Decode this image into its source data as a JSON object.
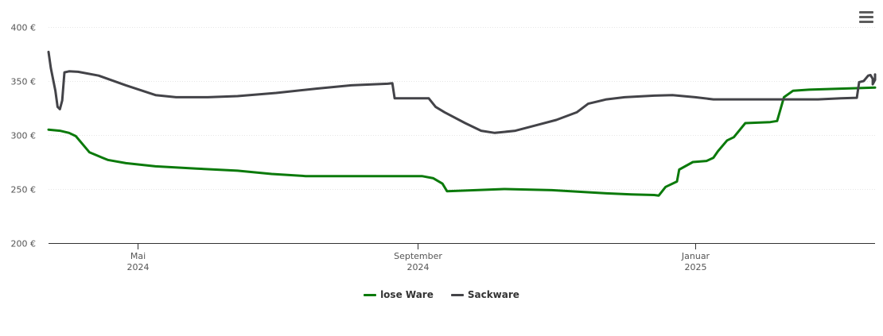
{
  "chart_data": {
    "type": "line",
    "ylim": [
      200,
      400
    ],
    "yticks": [
      "200 €",
      "250 €",
      "300 €",
      "350 €",
      "400 €"
    ],
    "ytick_values": [
      200,
      250,
      300,
      350,
      400
    ],
    "xrange": [
      "2024-03-23",
      "2025-03-21"
    ],
    "xticks": [
      {
        "date": "2024-05-01",
        "line1": "Mai",
        "line2": "2024"
      },
      {
        "date": "2024-09-01",
        "line1": "September",
        "line2": "2024"
      },
      {
        "date": "2025-01-01",
        "line1": "Januar",
        "line2": "2025"
      }
    ],
    "grid": true,
    "legend_position": "bottom-center",
    "series": [
      {
        "name": "lose Ware",
        "color": "#0b7a0b",
        "points": [
          [
            "2024-03-23",
            305
          ],
          [
            "2024-03-28",
            304
          ],
          [
            "2024-04-01",
            302
          ],
          [
            "2024-04-04",
            299
          ],
          [
            "2024-04-10",
            284
          ],
          [
            "2024-04-18",
            277
          ],
          [
            "2024-04-26",
            274
          ],
          [
            "2024-05-09",
            271
          ],
          [
            "2024-05-27",
            269
          ],
          [
            "2024-06-14",
            267
          ],
          [
            "2024-06-29",
            264
          ],
          [
            "2024-07-14",
            262
          ],
          [
            "2024-07-30",
            262
          ],
          [
            "2024-08-14",
            262
          ],
          [
            "2024-08-30",
            262
          ],
          [
            "2024-09-03",
            262
          ],
          [
            "2024-09-08",
            260
          ],
          [
            "2024-09-12",
            255
          ],
          [
            "2024-09-14",
            248
          ],
          [
            "2024-09-21",
            248.5
          ],
          [
            "2024-10-09",
            250
          ],
          [
            "2024-10-30",
            249
          ],
          [
            "2024-11-23",
            246
          ],
          [
            "2024-12-04",
            245
          ],
          [
            "2024-12-14",
            244.5
          ],
          [
            "2024-12-16",
            244
          ],
          [
            "2024-12-19",
            252
          ],
          [
            "2024-12-24",
            257
          ],
          [
            "2024-12-25",
            268
          ],
          [
            "2024-12-31",
            275
          ],
          [
            "2025-01-06",
            276
          ],
          [
            "2025-01-09",
            279
          ],
          [
            "2025-01-11",
            285
          ],
          [
            "2025-01-15",
            295
          ],
          [
            "2025-01-18",
            298
          ],
          [
            "2025-01-23",
            311
          ],
          [
            "2025-02-03",
            312
          ],
          [
            "2025-02-06",
            313
          ],
          [
            "2025-02-09",
            335
          ],
          [
            "2025-02-13",
            341
          ],
          [
            "2025-02-20",
            342
          ],
          [
            "2025-03-21",
            344
          ]
        ]
      },
      {
        "name": "Sackware",
        "color": "#434348",
        "points": [
          [
            "2024-03-23",
            377
          ],
          [
            "2024-03-24",
            362
          ],
          [
            "2024-03-26",
            341
          ],
          [
            "2024-03-27",
            326
          ],
          [
            "2024-03-28",
            324
          ],
          [
            "2024-03-29",
            332
          ],
          [
            "2024-03-30",
            358
          ],
          [
            "2024-04-01",
            359
          ],
          [
            "2024-04-05",
            358.5
          ],
          [
            "2024-04-14",
            355
          ],
          [
            "2024-04-26",
            346
          ],
          [
            "2024-05-09",
            337
          ],
          [
            "2024-05-18",
            335
          ],
          [
            "2024-06-01",
            335
          ],
          [
            "2024-06-14",
            336
          ],
          [
            "2024-07-01",
            339
          ],
          [
            "2024-07-19",
            343
          ],
          [
            "2024-08-03",
            346
          ],
          [
            "2024-08-19",
            347.5
          ],
          [
            "2024-08-21",
            348
          ],
          [
            "2024-08-22",
            334
          ],
          [
            "2024-09-06",
            334
          ],
          [
            "2024-09-09",
            326
          ],
          [
            "2024-09-13",
            321
          ],
          [
            "2024-09-22",
            311
          ],
          [
            "2024-09-29",
            304
          ],
          [
            "2024-10-05",
            302
          ],
          [
            "2024-10-14",
            304
          ],
          [
            "2024-10-23",
            309
          ],
          [
            "2024-11-01",
            314
          ],
          [
            "2024-11-10",
            321
          ],
          [
            "2024-11-15",
            329
          ],
          [
            "2024-11-23",
            333
          ],
          [
            "2024-12-01",
            335
          ],
          [
            "2024-12-14",
            336.5
          ],
          [
            "2024-12-22",
            337
          ],
          [
            "2025-01-01",
            335
          ],
          [
            "2025-01-09",
            333
          ],
          [
            "2025-01-24",
            333
          ],
          [
            "2025-02-09",
            333
          ],
          [
            "2025-02-24",
            333
          ],
          [
            "2025-03-06",
            334
          ],
          [
            "2025-03-13",
            334.5
          ],
          [
            "2025-03-14",
            349
          ],
          [
            "2025-03-16",
            350
          ],
          [
            "2025-03-18",
            355
          ],
          [
            "2025-03-19",
            355.5
          ],
          [
            "2025-03-20",
            352
          ],
          [
            "2025-03-20",
            347
          ],
          [
            "2025-03-21",
            351
          ],
          [
            "2025-03-21",
            356
          ]
        ]
      }
    ]
  },
  "legend": {
    "items": [
      {
        "label": "lose Ware",
        "color": "#0b7a0b"
      },
      {
        "label": "Sackware",
        "color": "#434348"
      }
    ]
  },
  "menu_icon": "hamburger-menu-icon"
}
